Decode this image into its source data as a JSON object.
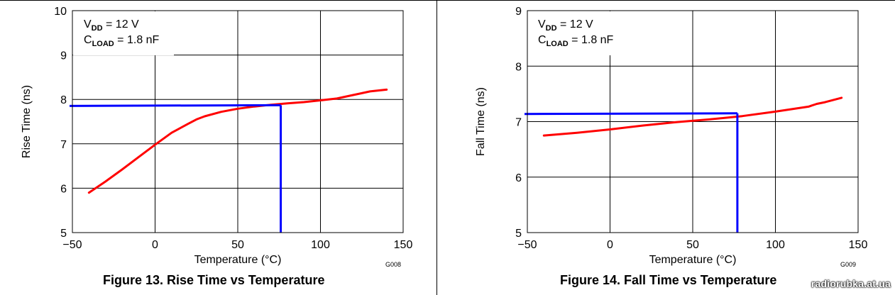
{
  "chart_data": [
    {
      "type": "line",
      "figure_caption": "Figure 13. Rise Time vs Temperature",
      "xlabel": "Temperature (°C)",
      "ylabel": "Rise Time (ns)",
      "xlim": [
        -50,
        150
      ],
      "ylim": [
        5,
        10
      ],
      "xticks": [
        -50,
        0,
        50,
        100,
        150
      ],
      "yticks": [
        5,
        6,
        7,
        8,
        9,
        10
      ],
      "xtick_labels": [
        "−50",
        "0",
        "50",
        "100",
        "150"
      ],
      "ytick_labels": [
        "5",
        "6",
        "7",
        "8",
        "9",
        "10"
      ],
      "grid": true,
      "graph_id": "G008",
      "conditions": {
        "vdd": "V",
        "vdd_sub": "DD",
        "vdd_val": " = 12 V",
        "cload": "C",
        "cload_sub": "LOAD",
        "cload_val": " = 1.8 nF"
      },
      "series": [
        {
          "color": "#ff0000",
          "x": [
            -40,
            -30,
            -20,
            -10,
            0,
            10,
            20,
            25,
            30,
            40,
            50,
            60,
            70,
            80,
            90,
            100,
            110,
            115,
            120,
            125,
            130,
            140
          ],
          "y": [
            5.9,
            6.15,
            6.42,
            6.7,
            6.98,
            7.25,
            7.45,
            7.55,
            7.62,
            7.72,
            7.79,
            7.84,
            7.88,
            7.91,
            7.94,
            7.98,
            8.02,
            8.06,
            8.1,
            8.14,
            8.18,
            8.22
          ]
        }
      ],
      "annotation": {
        "color": "#0000ff",
        "x": 76,
        "y": 7.87
      }
    },
    {
      "type": "line",
      "figure_caption": "Figure 14. Fall Time vs Temperature",
      "xlabel": "Temperature (°C)",
      "ylabel": "Fall Time (ns)",
      "xlim": [
        -50,
        150
      ],
      "ylim": [
        5,
        9
      ],
      "xticks": [
        -50,
        0,
        50,
        100,
        150
      ],
      "yticks": [
        5,
        6,
        7,
        8,
        9
      ],
      "xtick_labels": [
        "−50",
        "0",
        "50",
        "100",
        "150"
      ],
      "ytick_labels": [
        "5",
        "6",
        "7",
        "8",
        "9"
      ],
      "grid": true,
      "graph_id": "G009",
      "conditions": {
        "vdd": "V",
        "vdd_sub": "DD",
        "vdd_val": " = 12 V",
        "cload": "C",
        "cload_sub": "LOAD",
        "cload_val": " = 1.8 nF"
      },
      "series": [
        {
          "color": "#ff0000",
          "x": [
            -40,
            -20,
            0,
            20,
            40,
            60,
            80,
            100,
            120,
            125,
            130,
            140
          ],
          "y": [
            6.75,
            6.8,
            6.86,
            6.93,
            6.99,
            7.04,
            7.1,
            7.18,
            7.27,
            7.32,
            7.35,
            7.43
          ]
        }
      ],
      "annotation": {
        "color": "#0000ff",
        "x": 77,
        "y": 7.15
      }
    }
  ],
  "watermark": "radiorubka.at.ua"
}
